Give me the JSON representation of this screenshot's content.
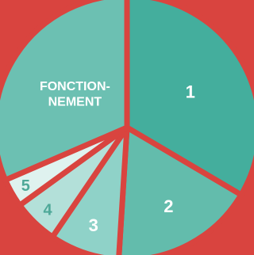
{
  "colors": {
    "background": "#d9443f"
  },
  "chart_data": {
    "type": "pie",
    "title": "",
    "slices": [
      {
        "label": "1",
        "value": 33.5,
        "color": "#44ae9d",
        "text_color": "#ffffff"
      },
      {
        "label": "2",
        "value": 17.5,
        "color": "#63bcac",
        "text_color": "#ffffff"
      },
      {
        "label": "3",
        "value": 8.5,
        "color": "#8fd2c8",
        "text_color": "#ffffff"
      },
      {
        "label": "4",
        "value": 5.5,
        "color": "#b3e0d9",
        "text_color": "#4ea898"
      },
      {
        "label": "5",
        "value": 3.5,
        "color": "#dff2ef",
        "text_color": "#4ea898"
      },
      {
        "label": "FONCTION-\nNEMENT",
        "value": 31.5,
        "color": "#6cc0b2",
        "text_color": "#ffffff"
      }
    ]
  }
}
